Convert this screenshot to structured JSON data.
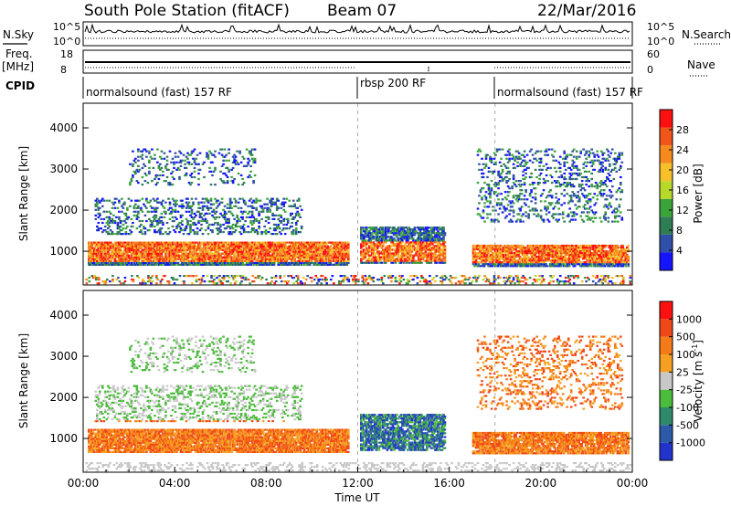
{
  "header": {
    "station": "South Pole Station (fitACF)",
    "beam": "Beam 07",
    "date": "22/Mar/2016"
  },
  "panels": {
    "nsky": {
      "label": "N.Sky",
      "ticks": [
        "10^5",
        "10^0"
      ],
      "right_label": "N.Search",
      "right_ticks": [
        "10^5",
        "10^0"
      ]
    },
    "freq": {
      "label_line1": "Freq.",
      "label_line2": "[MHz]",
      "ticks": [
        "18",
        "8"
      ],
      "right_label": "Nave",
      "right_ticks": [
        "60",
        "0"
      ]
    },
    "cpid": {
      "label": "CPID",
      "segments": [
        {
          "text": "normalsound (fast) 157 RF",
          "start_h": 0,
          "end_h": 12
        },
        {
          "text": "rbsp 200 RF",
          "start_h": 12,
          "end_h": 18
        },
        {
          "text": "normalsound (fast) 157 RF",
          "start_h": 18,
          "end_h": 24
        }
      ]
    }
  },
  "chart_data": [
    {
      "type": "heatmap",
      "title": "",
      "ylabel": "Slant Range [km]",
      "xlim": [
        0,
        24
      ],
      "ylim": [
        180,
        4600
      ],
      "yticks": [
        "1000",
        "2000",
        "3000",
        "4000"
      ],
      "colorbar": {
        "label": "Power [dB]",
        "ticks": [
          "4",
          "8",
          "12",
          "16",
          "20",
          "24",
          "28"
        ],
        "range": [
          0,
          30
        ],
        "colors": [
          "#1414ff",
          "#2f4fa8",
          "#2f7d54",
          "#3aa33a",
          "#b7d92a",
          "#f5c02a",
          "#f58a1e",
          "#f0551a",
          "#ff1010"
        ]
      }
    },
    {
      "type": "heatmap",
      "title": "",
      "ylabel": "Slant Range [km]",
      "xlabel": "Time UT",
      "xlim": [
        0,
        24
      ],
      "ylim": [
        180,
        4600
      ],
      "xticks": [
        "00:00",
        "04:00",
        "08:00",
        "12:00",
        "16:00",
        "20:00",
        "00:00"
      ],
      "yticks": [
        "1000",
        "2000",
        "3000",
        "4000"
      ],
      "colorbar": {
        "label": "Velocity [m s",
        "label_sup": "-1",
        "label_end": "]",
        "ticks": [
          "1000",
          "500",
          "100",
          "25",
          "-25",
          "-100",
          "-500",
          "-1000"
        ],
        "colors": [
          "#2233cc",
          "#2d5aa8",
          "#2e8a6a",
          "#4cbc3c",
          "#c8c8c8",
          "#f5a020",
          "#f57a18",
          "#f04818",
          "#ff1010"
        ]
      }
    }
  ]
}
